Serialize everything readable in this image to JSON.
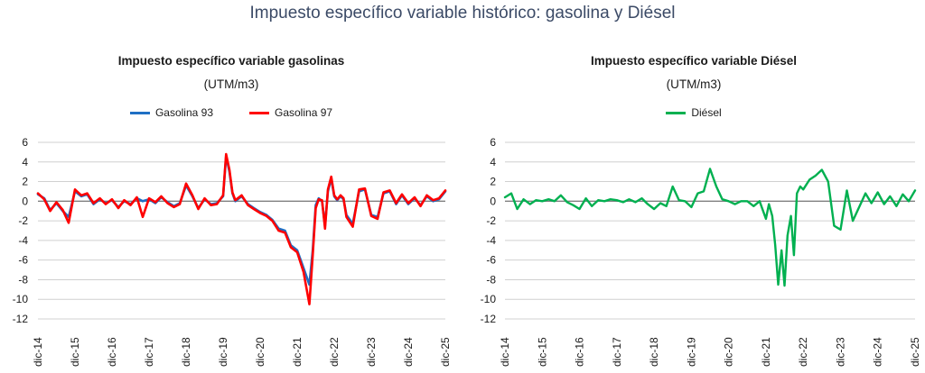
{
  "title": "Impuesto específico variable histórico: gasolina y Diésel",
  "colors": {
    "title": "#3b4a66",
    "gasolina93": "#1f6fc4",
    "gasolina97": "#ff0000",
    "diesel": "#00b050",
    "grid": "#d0d0d0",
    "zero": "#808080"
  },
  "chart_data": [
    {
      "type": "line",
      "title": "Impuesto específico variable gasolinas",
      "subtitle": "(UTM/m3)",
      "xlabel": "",
      "ylabel": "",
      "ylim": [
        -12,
        6
      ],
      "yticks": [
        "6",
        "4",
        "2",
        "0",
        "-2",
        "-4",
        "-6",
        "-8",
        "-10",
        "-12"
      ],
      "yticks_values": [
        6,
        4,
        2,
        0,
        -2,
        -4,
        -6,
        -8,
        -10,
        -12
      ],
      "xticks": [
        "dic-14",
        "dic-15",
        "dic-16",
        "dic-17",
        "dic-18",
        "dic-19",
        "dic-20",
        "dic-21",
        "dic-22",
        "dic-23",
        "dic-24",
        "dic-25"
      ],
      "xlim": [
        0,
        11
      ],
      "grid": true,
      "legend": "top-center",
      "x": [
        0,
        0.17,
        0.33,
        0.5,
        0.67,
        0.83,
        1.0,
        1.17,
        1.33,
        1.5,
        1.67,
        1.83,
        2.0,
        2.17,
        2.33,
        2.5,
        2.67,
        2.83,
        3.0,
        3.17,
        3.33,
        3.5,
        3.67,
        3.83,
        4.0,
        4.17,
        4.33,
        4.5,
        4.67,
        4.83,
        5.0,
        5.08,
        5.17,
        5.25,
        5.33,
        5.5,
        5.67,
        5.83,
        6.0,
        6.17,
        6.33,
        6.5,
        6.67,
        6.83,
        7.0,
        7.17,
        7.33,
        7.42,
        7.5,
        7.58,
        7.67,
        7.75,
        7.83,
        7.92,
        8.0,
        8.08,
        8.17,
        8.25,
        8.33,
        8.5,
        8.67,
        8.83,
        9.0,
        9.17,
        9.33,
        9.5,
        9.67,
        9.83,
        10.0,
        10.17,
        10.33,
        10.5,
        10.67,
        10.83,
        11.0
      ],
      "series": [
        {
          "name": "Gasolina 93",
          "values": [
            0.7,
            0.3,
            -0.9,
            -0.2,
            -1.0,
            -1.6,
            1.0,
            0.5,
            0.7,
            -0.3,
            0.2,
            -0.2,
            0.1,
            -0.6,
            0.0,
            -0.3,
            0.3,
            0.0,
            0.2,
            -0.2,
            0.4,
            -0.1,
            -0.5,
            -0.2,
            1.6,
            0.5,
            -0.7,
            0.2,
            -0.3,
            -0.2,
            0.5,
            4.6,
            3.0,
            0.8,
            0.0,
            0.5,
            -0.3,
            -0.7,
            -1.1,
            -1.4,
            -1.9,
            -2.8,
            -3.0,
            -4.5,
            -5.0,
            -6.8,
            -8.5,
            -5.0,
            -0.4,
            0.3,
            0.0,
            -2.5,
            1.0,
            2.3,
            0.5,
            0.1,
            0.5,
            0.2,
            -1.4,
            -2.3,
            1.0,
            1.2,
            -1.4,
            -1.6,
            0.8,
            1.0,
            -0.3,
            0.6,
            -0.3,
            0.3,
            -0.4,
            0.5,
            0.0,
            0.2,
            1.0
          ]
        },
        {
          "name": "Gasolina 97",
          "values": [
            0.8,
            0.2,
            -1.0,
            -0.1,
            -0.9,
            -2.2,
            1.2,
            0.6,
            0.8,
            -0.2,
            0.3,
            -0.3,
            0.2,
            -0.7,
            0.1,
            -0.4,
            0.4,
            -1.6,
            0.3,
            -0.1,
            0.5,
            -0.2,
            -0.6,
            -0.3,
            1.8,
            0.6,
            -0.8,
            0.3,
            -0.4,
            -0.3,
            0.6,
            4.8,
            3.2,
            0.9,
            0.1,
            0.6,
            -0.4,
            -0.8,
            -1.2,
            -1.5,
            -2.0,
            -3.0,
            -3.2,
            -4.7,
            -5.2,
            -7.2,
            -10.5,
            -5.5,
            -0.7,
            0.2,
            0.1,
            -2.8,
            1.2,
            2.5,
            0.6,
            0.2,
            0.6,
            0.3,
            -1.6,
            -2.6,
            1.2,
            1.3,
            -1.5,
            -1.8,
            0.9,
            1.1,
            -0.2,
            0.7,
            -0.2,
            0.4,
            -0.5,
            0.6,
            0.1,
            0.3,
            1.1
          ]
        }
      ]
    },
    {
      "type": "line",
      "title": "Impuesto específico variable Diésel",
      "subtitle": "(UTM/m3)",
      "xlabel": "",
      "ylabel": "",
      "ylim": [
        -12,
        6
      ],
      "yticks": [
        "6",
        "4",
        "2",
        "0",
        "-2",
        "-4",
        "-6",
        "-8",
        "-10",
        "-12"
      ],
      "yticks_values": [
        6,
        4,
        2,
        0,
        -2,
        -4,
        -6,
        -8,
        -10,
        -12
      ],
      "xticks": [
        "dic-14",
        "dic-15",
        "dic-16",
        "dic-17",
        "dic-18",
        "dic-19",
        "dic-20",
        "dic-21",
        "dic-22",
        "dic-23",
        "dic-24",
        "dic-25"
      ],
      "xlim": [
        0,
        11
      ],
      "grid": true,
      "legend": "top-center",
      "x": [
        0,
        0.17,
        0.33,
        0.5,
        0.67,
        0.83,
        1.0,
        1.17,
        1.33,
        1.5,
        1.67,
        1.83,
        2.0,
        2.17,
        2.33,
        2.5,
        2.67,
        2.83,
        3.0,
        3.17,
        3.33,
        3.5,
        3.67,
        3.83,
        4.0,
        4.17,
        4.33,
        4.5,
        4.67,
        4.83,
        5.0,
        5.17,
        5.33,
        5.5,
        5.67,
        5.83,
        6.0,
        6.17,
        6.33,
        6.5,
        6.67,
        6.83,
        7.0,
        7.08,
        7.17,
        7.25,
        7.33,
        7.42,
        7.5,
        7.58,
        7.67,
        7.75,
        7.83,
        7.92,
        8.0,
        8.17,
        8.33,
        8.5,
        8.67,
        8.83,
        9.0,
        9.17,
        9.33,
        9.5,
        9.67,
        9.83,
        10.0,
        10.17,
        10.33,
        10.5,
        10.67,
        10.83,
        11.0
      ],
      "series": [
        {
          "name": "Diésel",
          "values": [
            0.4,
            0.8,
            -0.8,
            0.2,
            -0.3,
            0.1,
            0.0,
            0.2,
            0.0,
            0.6,
            -0.1,
            -0.4,
            -0.8,
            0.3,
            -0.5,
            0.1,
            0.0,
            0.2,
            0.1,
            -0.1,
            0.2,
            -0.1,
            0.3,
            -0.3,
            -0.8,
            -0.2,
            -0.5,
            1.5,
            0.1,
            0.0,
            -0.6,
            0.8,
            1.0,
            3.3,
            1.5,
            0.2,
            0.0,
            -0.3,
            0.0,
            0.0,
            -0.5,
            0.0,
            -1.8,
            -0.3,
            -1.5,
            -4.5,
            -8.5,
            -5.0,
            -8.6,
            -3.5,
            -1.5,
            -5.5,
            0.8,
            1.5,
            1.2,
            2.2,
            2.6,
            3.2,
            2.0,
            -2.5,
            -2.9,
            1.1,
            -2.0,
            -0.6,
            0.8,
            -0.2,
            0.9,
            -0.3,
            0.5,
            -0.5,
            0.7,
            0.0,
            1.1
          ]
        }
      ]
    }
  ]
}
